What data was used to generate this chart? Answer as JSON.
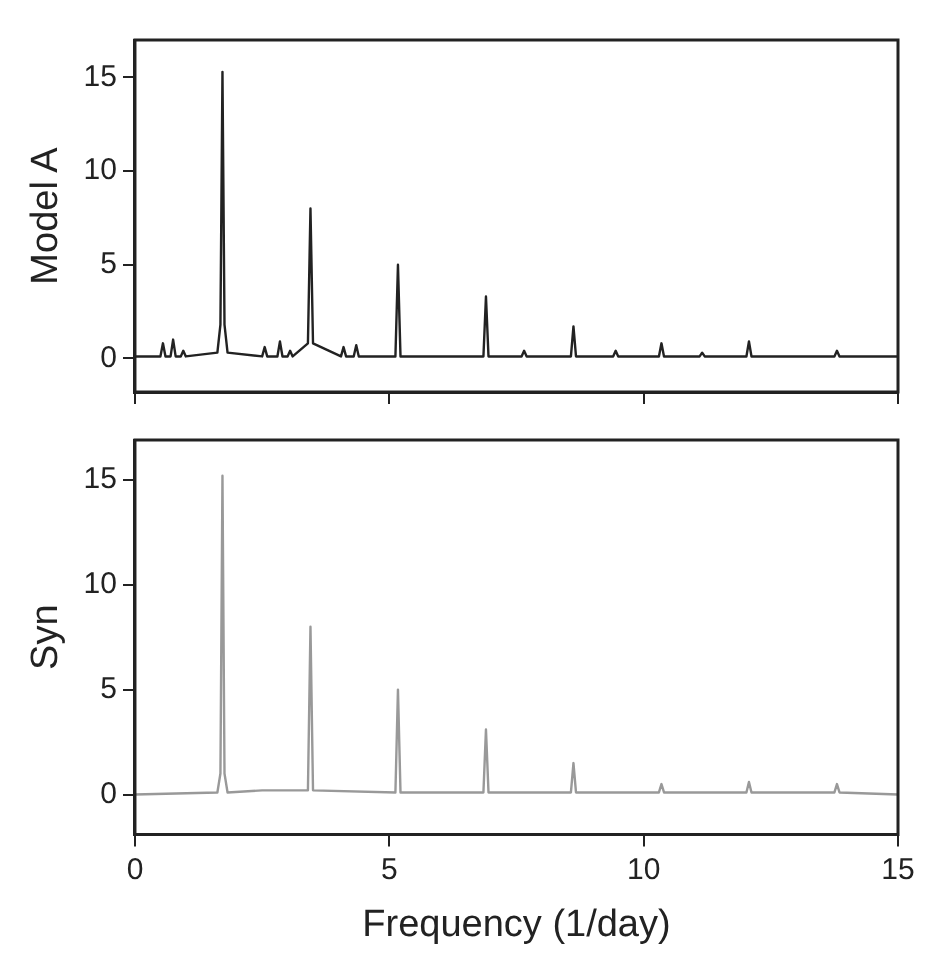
{
  "chart_data": [
    {
      "type": "line",
      "ylabel": "Model A",
      "xlim": [
        0,
        15
      ],
      "xticks": [
        0,
        5,
        10,
        15
      ],
      "ylim": [
        -1.8,
        17
      ],
      "yticks": [
        0,
        5,
        10,
        15
      ],
      "tick_labels": "y",
      "grid": false,
      "legend": false,
      "marker": "none",
      "line_style": "solid",
      "series": [
        {
          "color": "#222222",
          "x": [
            0,
            0.5,
            0.55,
            0.6,
            0.7,
            0.75,
            0.8,
            0.9,
            0.95,
            1.0,
            1.62,
            1.68,
            1.72,
            1.76,
            1.82,
            2.5,
            2.55,
            2.6,
            2.8,
            2.85,
            2.9,
            3.0,
            3.05,
            3.1,
            3.4,
            3.45,
            3.5,
            4.05,
            4.1,
            4.15,
            4.3,
            4.35,
            4.4,
            5.12,
            5.17,
            5.22,
            6.0,
            6.85,
            6.9,
            6.95,
            7.6,
            7.65,
            7.7,
            8.57,
            8.62,
            8.67,
            9.4,
            9.45,
            9.5,
            10.3,
            10.35,
            10.4,
            11.1,
            11.15,
            11.2,
            12.02,
            12.07,
            12.12,
            13.75,
            13.8,
            13.85,
            15
          ],
          "values": [
            0.1,
            0.1,
            0.8,
            0.1,
            0.1,
            1.0,
            0.1,
            0.1,
            0.4,
            0.1,
            0.3,
            1.8,
            15.3,
            1.8,
            0.3,
            0.1,
            0.6,
            0.1,
            0.1,
            0.9,
            0.1,
            0.1,
            0.4,
            0.1,
            0.8,
            8.0,
            0.8,
            0.1,
            0.6,
            0.1,
            0.1,
            0.7,
            0.1,
            0.1,
            5.0,
            0.1,
            0.1,
            0.1,
            3.3,
            0.1,
            0.1,
            0.4,
            0.1,
            0.1,
            1.7,
            0.1,
            0.1,
            0.4,
            0.1,
            0.1,
            0.8,
            0.1,
            0.1,
            0.3,
            0.1,
            0.1,
            0.9,
            0.1,
            0.1,
            0.4,
            0.1,
            0.1
          ]
        }
      ]
    },
    {
      "type": "line",
      "ylabel": "Syn",
      "xlabel": "Frequency (1/day)",
      "xlim": [
        0,
        15
      ],
      "xticks": [
        0,
        5,
        10,
        15
      ],
      "ylim": [
        -1.9,
        16.9
      ],
      "yticks": [
        0,
        5,
        10,
        15
      ],
      "grid": false,
      "legend": false,
      "marker": "none",
      "line_style": "solid",
      "series": [
        {
          "color": "#999999",
          "x": [
            0,
            1.62,
            1.68,
            1.72,
            1.76,
            1.82,
            2.5,
            3.4,
            3.45,
            3.5,
            5.12,
            5.17,
            5.22,
            6.85,
            6.9,
            6.95,
            8.57,
            8.62,
            8.67,
            10.3,
            10.35,
            10.4,
            12.02,
            12.07,
            12.12,
            13.75,
            13.8,
            13.85,
            15
          ],
          "values": [
            0,
            0.1,
            1.0,
            15.2,
            1.0,
            0.1,
            0.2,
            0.2,
            8.0,
            0.2,
            0.1,
            5.0,
            0.1,
            0.1,
            3.1,
            0.1,
            0.1,
            1.5,
            0.1,
            0.1,
            0.5,
            0.1,
            0.1,
            0.6,
            0.1,
            0.1,
            0.5,
            0.1,
            0
          ]
        }
      ]
    }
  ]
}
